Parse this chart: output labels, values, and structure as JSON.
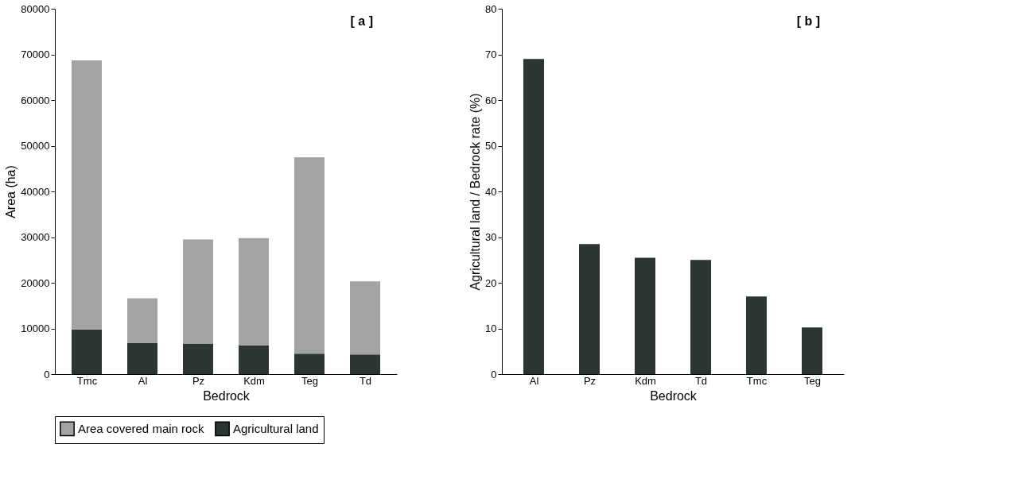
{
  "chart_data": [
    {
      "type": "bar",
      "stacked": true,
      "categories": [
        "Tmc",
        "Al",
        "Pz",
        "Kdm",
        "Teg",
        "Td"
      ],
      "series": [
        {
          "name": "Agricultural land",
          "color": "#2b3533",
          "values": [
            9800,
            6800,
            6700,
            6300,
            4500,
            4300
          ]
        },
        {
          "name": "Area covered main rock",
          "color": "#a3a3a3",
          "values": [
            58900,
            9800,
            22800,
            23500,
            43000,
            16000
          ]
        }
      ],
      "ylim": [
        0,
        80000
      ],
      "yticks": [
        0,
        10000,
        20000,
        30000,
        40000,
        50000,
        60000,
        70000,
        80000
      ],
      "xlabel": "Bedrock",
      "ylabel": "Area (ha)",
      "legend": "bottom",
      "grid": false,
      "annotations": [
        "[ a ]"
      ]
    },
    {
      "type": "bar",
      "categories": [
        "Al",
        "Pz",
        "Kdm",
        "Td",
        "Tmc",
        "Teg"
      ],
      "values": [
        69,
        28.5,
        25.5,
        25,
        17,
        10.2
      ],
      "color": "#2b3533",
      "ylim": [
        0,
        80
      ],
      "yticks": [
        0,
        10,
        20,
        30,
        40,
        50,
        60,
        70,
        80
      ],
      "xlabel": "Bedrock",
      "ylabel": "Agricultural land / Bedrock rate (%)",
      "grid": false,
      "annotations": [
        "[ b ]"
      ]
    }
  ]
}
